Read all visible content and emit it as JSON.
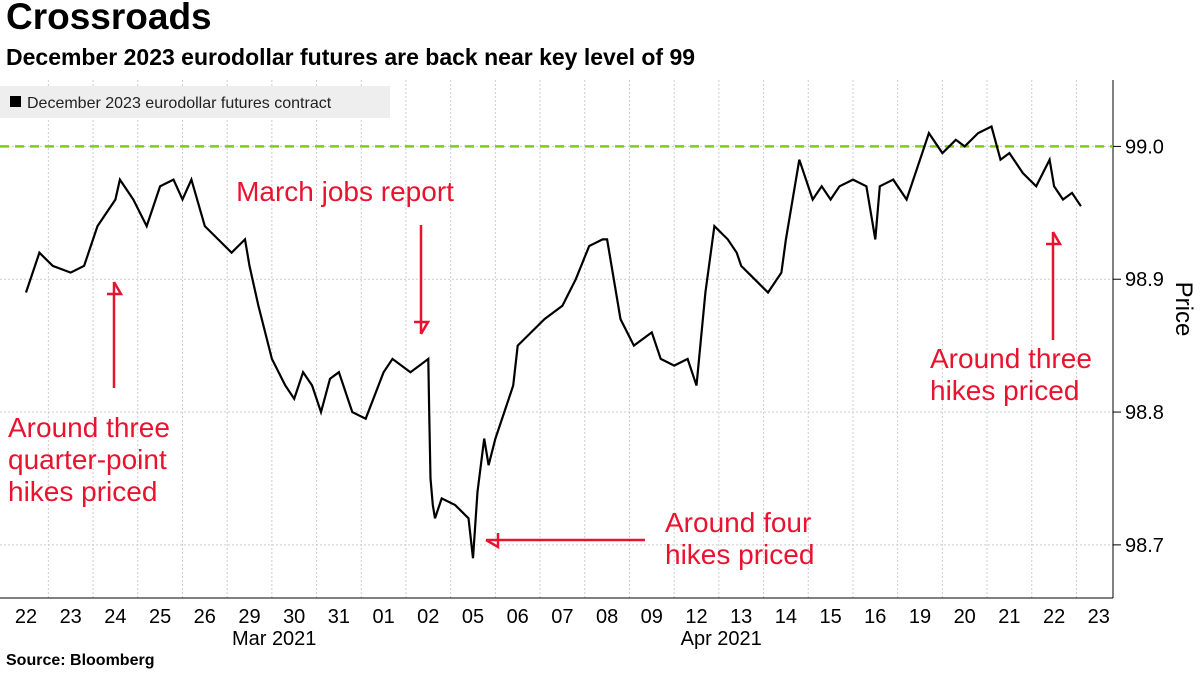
{
  "title": "Crossroads",
  "subtitle": "December 2023 eurodollar futures are back near key level of 99",
  "source": "Source:  Bloomberg",
  "colors": {
    "line": "#000000",
    "reference": "#7dcc1d",
    "annotation": "#e8132e",
    "grid": "#cccccc",
    "legend_bg": "#eeeeee"
  },
  "chart_data": {
    "type": "line",
    "legend": [
      "December 2023 eurodollar futures contract"
    ],
    "legend_placement": "top-left",
    "ylabel": "Price",
    "xlabel": "",
    "ylim": [
      98.66,
      99.05
    ],
    "yticks": [
      98.7,
      98.8,
      98.9,
      99.0
    ],
    "ytick_labels": [
      "98.7",
      "98.8",
      "98.9",
      "99.0"
    ],
    "y_axis_side": "right",
    "grid": "horizontal dotted",
    "x_day_labels": [
      "22",
      "23",
      "24",
      "25",
      "26",
      "29",
      "30",
      "31",
      "01",
      "02",
      "05",
      "06",
      "07",
      "08",
      "09",
      "12",
      "13",
      "14",
      "15",
      "16",
      "19",
      "20",
      "21",
      "22",
      "23"
    ],
    "x_month_labels": [
      {
        "label": "Mar 2021",
        "day_index": 6
      },
      {
        "label": "Apr 2021",
        "day_index": 16
      }
    ],
    "reference_line": {
      "value": 99.0,
      "style": "dashed"
    },
    "series": [
      {
        "name": "December 2023 eurodollar futures contract",
        "x": [
          0,
          0.3,
          0.6,
          1.0,
          1.3,
          1.6,
          2.0,
          2.1,
          2.4,
          2.7,
          3.0,
          3.3,
          3.5,
          3.7,
          4.0,
          4.3,
          4.6,
          4.9,
          5.0,
          5.2,
          5.5,
          5.8,
          6.0,
          6.2,
          6.4,
          6.6,
          6.8,
          7.0,
          7.3,
          7.6,
          8.0,
          8.2,
          8.4,
          8.6,
          8.8,
          9.0,
          9.02,
          9.05,
          9.1,
          9.15,
          9.3,
          9.6,
          9.9,
          10.0,
          10.1,
          10.25,
          10.35,
          10.5,
          10.7,
          10.9,
          11.0,
          11.3,
          11.6,
          12.0,
          12.3,
          12.6,
          12.9,
          13.0,
          13.3,
          13.6,
          14.0,
          14.2,
          14.5,
          14.8,
          15.0,
          15.2,
          15.4,
          15.7,
          15.9,
          16.0,
          16.3,
          16.6,
          16.9,
          17.0,
          17.3,
          17.6,
          17.8,
          18.0,
          18.2,
          18.5,
          18.8,
          19.0,
          19.1,
          19.4,
          19.7,
          20.0,
          20.2,
          20.5,
          20.8,
          21.0,
          21.3,
          21.6,
          21.8,
          22.0,
          22.3,
          22.6,
          22.9,
          23.0,
          23.2,
          23.4,
          23.6
        ],
        "values": [
          98.89,
          98.92,
          98.91,
          98.905,
          98.91,
          98.94,
          98.96,
          98.975,
          98.96,
          98.94,
          98.97,
          98.975,
          98.96,
          98.975,
          98.94,
          98.93,
          98.92,
          98.93,
          98.91,
          98.88,
          98.84,
          98.82,
          98.81,
          98.83,
          98.82,
          98.8,
          98.825,
          98.83,
          98.8,
          98.795,
          98.83,
          98.84,
          98.835,
          98.83,
          98.835,
          98.84,
          98.8,
          98.75,
          98.73,
          98.72,
          98.735,
          98.73,
          98.72,
          98.69,
          98.74,
          98.78,
          98.76,
          98.78,
          98.8,
          98.82,
          98.85,
          98.86,
          98.87,
          98.88,
          98.9,
          98.925,
          98.93,
          98.93,
          98.87,
          98.85,
          98.86,
          98.84,
          98.835,
          98.84,
          98.82,
          98.89,
          98.94,
          98.93,
          98.92,
          98.91,
          98.9,
          98.89,
          98.905,
          98.93,
          98.99,
          98.96,
          98.97,
          98.96,
          98.97,
          98.975,
          98.97,
          98.93,
          98.97,
          98.975,
          98.96,
          98.99,
          99.01,
          98.995,
          99.005,
          99.0,
          99.01,
          99.015,
          98.99,
          98.995,
          98.98,
          98.97,
          98.99,
          98.97,
          98.96,
          98.965,
          98.955
        ]
      }
    ],
    "annotations": [
      {
        "text": [
          "March jobs report"
        ],
        "x": 9.0,
        "y": 98.845,
        "arrow": "down"
      },
      {
        "text": [
          "Around three",
          "quarter-point",
          "hikes priced"
        ],
        "x": 2.0,
        "y": 98.93,
        "arrow": "up"
      },
      {
        "text": [
          "Around four",
          "hikes priced"
        ],
        "x": 10.4,
        "y": 98.705,
        "arrow": "left"
      },
      {
        "text": [
          "Around three",
          "hikes priced"
        ],
        "x": 22.3,
        "y": 98.94,
        "arrow": "up"
      }
    ]
  }
}
